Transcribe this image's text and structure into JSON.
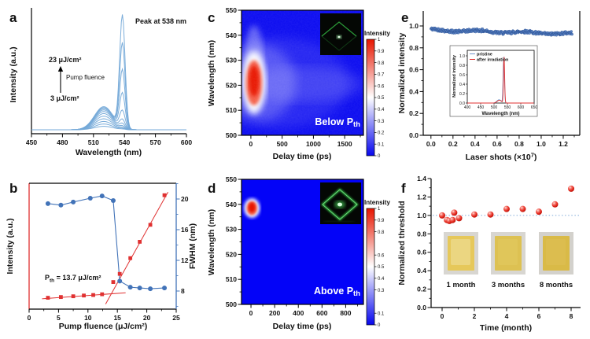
{
  "colors": {
    "spectrum_curve": "#74a9d8",
    "red": "#e03131",
    "blue": "#4273b8",
    "scatter_fill": "#5b84c6",
    "scatter_edge": "#2f5597",
    "heat_blue": "#0606ee",
    "heat_red": "#e81500",
    "inset_green": "#35d04a",
    "threshold_dotted": "#8fb4dd"
  },
  "chart_data": [
    {
      "panel": "a",
      "type": "line",
      "xlabel": "Wavelength (nm)",
      "ylabel": "Intensity (a.u.)",
      "xlim": [
        450,
        600
      ],
      "xticks": [
        450,
        480,
        510,
        540,
        570,
        600
      ],
      "annotations": {
        "peak": "Peak at 538 nm",
        "top_fluence": "23 μJ/cm²",
        "arrow_label": "Pump fluence",
        "bottom_fluence": "3 μJ/cm²"
      },
      "ase_peak_nm": 520,
      "ase_sigma_nm": 9,
      "lasing_peak_nm": 538,
      "lasing_sigma_nm": 2.6,
      "curves": [
        {
          "fluence": 3,
          "ase_amp": 0.03,
          "lasing_amp": 0.004
        },
        {
          "fluence": 5,
          "ase_amp": 0.05,
          "lasing_amp": 0.008
        },
        {
          "fluence": 7,
          "ase_amp": 0.072,
          "lasing_amp": 0.014
        },
        {
          "fluence": 9,
          "ase_amp": 0.095,
          "lasing_amp": 0.024
        },
        {
          "fluence": 11,
          "ase_amp": 0.118,
          "lasing_amp": 0.042
        },
        {
          "fluence": 13,
          "ase_amp": 0.14,
          "lasing_amp": 0.075
        },
        {
          "fluence": 15,
          "ase_amp": 0.158,
          "lasing_amp": 0.15
        },
        {
          "fluence": 17,
          "ase_amp": 0.172,
          "lasing_amp": 0.3
        },
        {
          "fluence": 19,
          "ase_amp": 0.183,
          "lasing_amp": 0.5
        },
        {
          "fluence": 21,
          "ase_amp": 0.192,
          "lasing_amp": 0.73
        },
        {
          "fluence": 23,
          "ase_amp": 0.2,
          "lasing_amp": 0.97
        }
      ]
    },
    {
      "panel": "b",
      "type": "scatter",
      "xlabel": "Pump fluence (μJ/cm²)",
      "ylabel_left": "Intensity (a.u.)",
      "ylabel_right": "FWHM (nm)",
      "xlim": [
        0,
        25
      ],
      "xticks": [
        0,
        5,
        10,
        15,
        20,
        25
      ],
      "fwhm_ticks": [
        8,
        12,
        16,
        20
      ],
      "threshold_annotation": {
        "main": "P",
        "sub": "th",
        "rest": " = 13.7 μJ/cm²"
      },
      "intensity_points": [
        [
          3.2,
          0.09
        ],
        [
          5.4,
          0.096
        ],
        [
          7.5,
          0.102
        ],
        [
          9.3,
          0.108
        ],
        [
          10.9,
          0.112
        ],
        [
          12.4,
          0.118
        ],
        [
          14.3,
          0.215
        ],
        [
          15.4,
          0.28
        ],
        [
          17.2,
          0.405
        ],
        [
          18.8,
          0.535
        ],
        [
          20.6,
          0.67
        ],
        [
          23.0,
          0.905
        ]
      ],
      "fwhm_points": [
        [
          3.2,
          19.4
        ],
        [
          5.4,
          19.2
        ],
        [
          7.5,
          19.6
        ],
        [
          10.4,
          20.1
        ],
        [
          12.4,
          20.4
        ],
        [
          14.3,
          19.8
        ],
        [
          15.4,
          9.3
        ],
        [
          17.2,
          8.5
        ],
        [
          18.8,
          8.4
        ],
        [
          20.6,
          8.3
        ],
        [
          23.0,
          8.4
        ]
      ],
      "fit_line_below": [
        [
          2.2,
          0.082
        ],
        [
          16.4,
          0.13
        ]
      ],
      "fit_line_above": [
        [
          13.0,
          0.04
        ],
        [
          23.6,
          0.93
        ]
      ]
    },
    {
      "panel": "c",
      "type": "heatmap",
      "xlabel": "Delay time (ps)",
      "ylabel": "Wavelength (nm)",
      "xlim": [
        -150,
        1800
      ],
      "xticks": [
        0,
        500,
        1000,
        1500
      ],
      "ylim": [
        500,
        550
      ],
      "yticks": [
        500,
        510,
        520,
        530,
        540,
        550
      ],
      "region_label": {
        "main": "Below P",
        "sub": "th"
      },
      "colorbar": {
        "title": "Intensity",
        "tick_labels": [
          "1",
          "0.9",
          "0.8",
          "0.7",
          "0.6",
          "0.5",
          "0.4",
          "0.3",
          "0.2",
          "0.1",
          "0"
        ],
        "tick_values": [
          1,
          0.9,
          0.8,
          0.7,
          0.6,
          0.5,
          0.4,
          0.3,
          0.2,
          0.1,
          0
        ]
      },
      "emission": {
        "wavelength_nm": 521,
        "delay_ps": 50,
        "spread_nm": 9,
        "duration_ps": 130,
        "peak_intensity": 1.0
      }
    },
    {
      "panel": "d",
      "type": "heatmap",
      "xlabel": "Delay time (ps)",
      "ylabel": "Wavelength (nm)",
      "xlim": [
        -80,
        950
      ],
      "xticks": [
        0,
        200,
        400,
        600,
        800
      ],
      "ylim": [
        500,
        550
      ],
      "yticks": [
        500,
        510,
        520,
        530,
        540,
        550
      ],
      "region_label": {
        "main": "Above P",
        "sub": "th"
      },
      "colorbar": {
        "title": "Intensity",
        "tick_labels": [
          "1",
          "0.9",
          "0.8",
          "0.6",
          "0.5",
          "0.4",
          "0.3",
          "0.1",
          "0"
        ],
        "tick_values": [
          1,
          0.9,
          0.8,
          0.6,
          0.5,
          0.4,
          0.3,
          0.1,
          0
        ]
      },
      "emission": {
        "wavelength_nm": 538.5,
        "delay_ps": 8,
        "spread_nm": 2.8,
        "duration_ps": 45,
        "peak_intensity": 1.0
      }
    },
    {
      "panel": "e",
      "type": "scatter",
      "xlabel_parts": {
        "main": "Laser shots (×10",
        "sup": "7",
        "end": ")"
      },
      "ylabel": "Normalized intensity",
      "xtick_labels": [
        "0.0",
        "0.2",
        "0.4",
        "0.6",
        "0.8",
        "1.0",
        "1.2"
      ],
      "xtick_values": [
        0,
        0.2,
        0.4,
        0.6,
        0.8,
        1.0,
        1.2
      ],
      "ytick_labels": [
        "0.0",
        "0.2",
        "0.4",
        "0.6",
        "0.8",
        "1.0"
      ],
      "ytick_values": [
        0,
        0.2,
        0.4,
        0.6,
        0.8,
        1.0
      ],
      "scatter": {
        "points_n": 380,
        "x_start": 0,
        "x_end": 1.28,
        "y_start": 0.963,
        "y_end": 0.928,
        "wiggle": 0.009,
        "jitter": 0.015,
        "seed": 42
      },
      "inset": {
        "xlabel": "Wavelength (nm)",
        "ylabel": "Normalized intensity",
        "xticks": [
          400,
          450,
          500,
          550,
          600,
          650
        ],
        "ytick_labels": [
          "0.0",
          "0.2",
          "0.4",
          "0.6",
          "0.8",
          "1.0"
        ],
        "ytick_values": [
          0,
          0.2,
          0.4,
          0.6,
          0.8,
          1.0
        ],
        "legend": [
          {
            "label": "pristine",
            "color": "#7096cc"
          },
          {
            "label": "after irradiation",
            "color": "#e03131"
          }
        ],
        "curves": [
          {
            "name": "pristine",
            "ase_amp": 0.07,
            "ase_center": 519,
            "ase_sigma": 8,
            "peak_amp": 0.97,
            "peak_center": 536.5,
            "peak_sigma": 2.4
          },
          {
            "name": "after irradiation",
            "ase_amp": 0.06,
            "ase_center": 520,
            "ase_sigma": 8,
            "peak_amp": 1.0,
            "peak_center": 537.5,
            "peak_sigma": 2.1
          }
        ]
      }
    },
    {
      "panel": "f",
      "type": "scatter",
      "xlabel": "Time (month)",
      "ylabel": "Normalized threshold",
      "xtick_values": [
        0,
        2,
        4,
        6,
        8
      ],
      "ytick_labels": [
        "0.0",
        "0.2",
        "0.4",
        "0.6",
        "0.8",
        "1.0",
        "1.2",
        "1.4"
      ],
      "ytick_values": [
        0,
        0.2,
        0.4,
        0.6,
        0.8,
        1.0,
        1.2,
        1.4
      ],
      "baseline": 1.0,
      "points": [
        [
          0,
          1.0
        ],
        [
          0.3,
          0.95
        ],
        [
          0.45,
          0.94
        ],
        [
          0.65,
          0.95
        ],
        [
          0.75,
          1.03
        ],
        [
          1.05,
          0.97
        ],
        [
          2,
          1.01
        ],
        [
          3,
          1.01
        ],
        [
          4,
          1.07
        ],
        [
          5,
          1.07
        ],
        [
          6,
          1.04
        ],
        [
          7,
          1.12
        ],
        [
          8,
          1.29
        ]
      ],
      "photos": [
        {
          "label": "1 month",
          "film_color": "#e6c85a",
          "pale_center": "#efe2a2",
          "bg_color": "#d8d6d1"
        },
        {
          "label": "3 months",
          "film_color": "#ddc152",
          "pale_center": "#e4cb64",
          "bg_color": "#d8d6d1"
        },
        {
          "label": "8 months",
          "film_color": "#d9ba47",
          "pale_center": "#e0c258",
          "bg_color": "#d3d1cc"
        }
      ]
    }
  ]
}
